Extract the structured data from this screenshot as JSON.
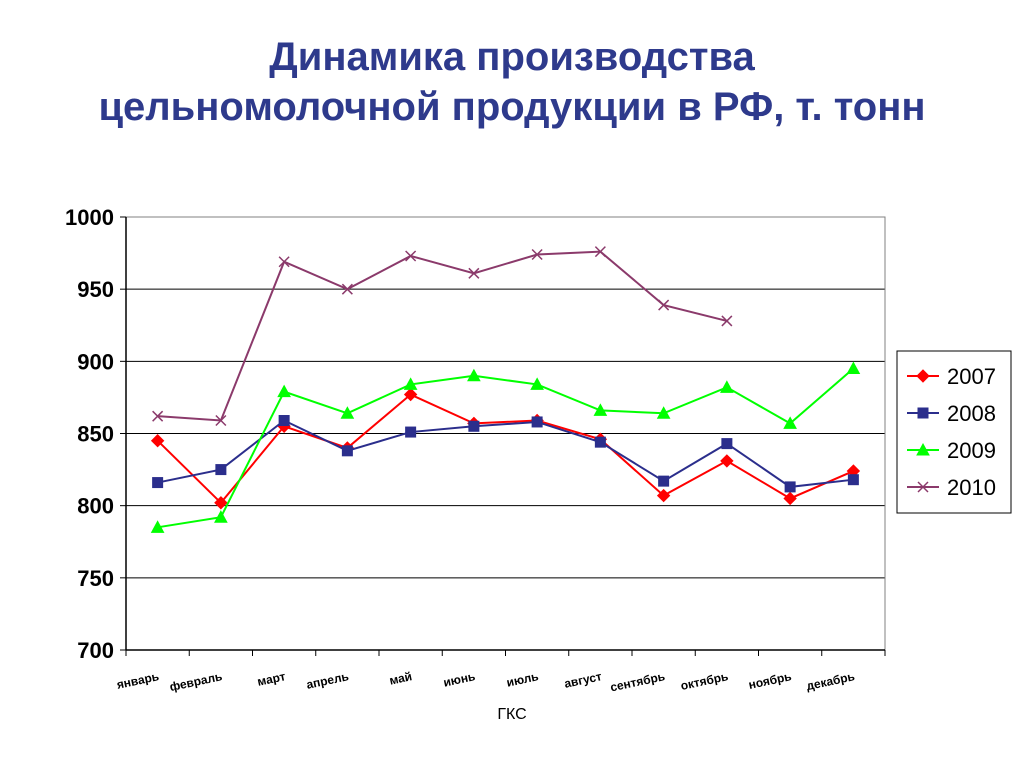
{
  "title": {
    "line1": "Динамика производства",
    "line2": "цельномолочной продукции в РФ, т. тонн"
  },
  "source": "ГКС",
  "chart_data": {
    "type": "line",
    "categories": [
      "январь",
      "февраль",
      "март",
      "апрель",
      "май",
      "июнь",
      "июль",
      "август",
      "сентябрь",
      "октябрь",
      "ноябрь",
      "декабрь"
    ],
    "ylim": [
      700,
      1000
    ],
    "yticks": [
      700,
      750,
      800,
      850,
      900,
      950,
      1000
    ],
    "grid": true,
    "legend_position": "right",
    "series": [
      {
        "name": "2007",
        "color": "#ff0000",
        "marker": "diamond",
        "values": [
          845,
          802,
          855,
          840,
          877,
          857,
          859,
          846,
          807,
          831,
          805,
          824
        ]
      },
      {
        "name": "2008",
        "color": "#2b2e8c",
        "marker": "square",
        "values": [
          816,
          825,
          859,
          838,
          851,
          855,
          858,
          844,
          817,
          843,
          813,
          818
        ]
      },
      {
        "name": "2009",
        "color": "#00ff00",
        "marker": "triangle",
        "values": [
          785,
          792,
          879,
          864,
          884,
          890,
          884,
          866,
          864,
          882,
          857,
          895
        ]
      },
      {
        "name": "2010",
        "color": "#8b3a6b",
        "marker": "x",
        "values": [
          862,
          859,
          969,
          950,
          973,
          961,
          974,
          976,
          939,
          928,
          null,
          null
        ]
      }
    ]
  }
}
